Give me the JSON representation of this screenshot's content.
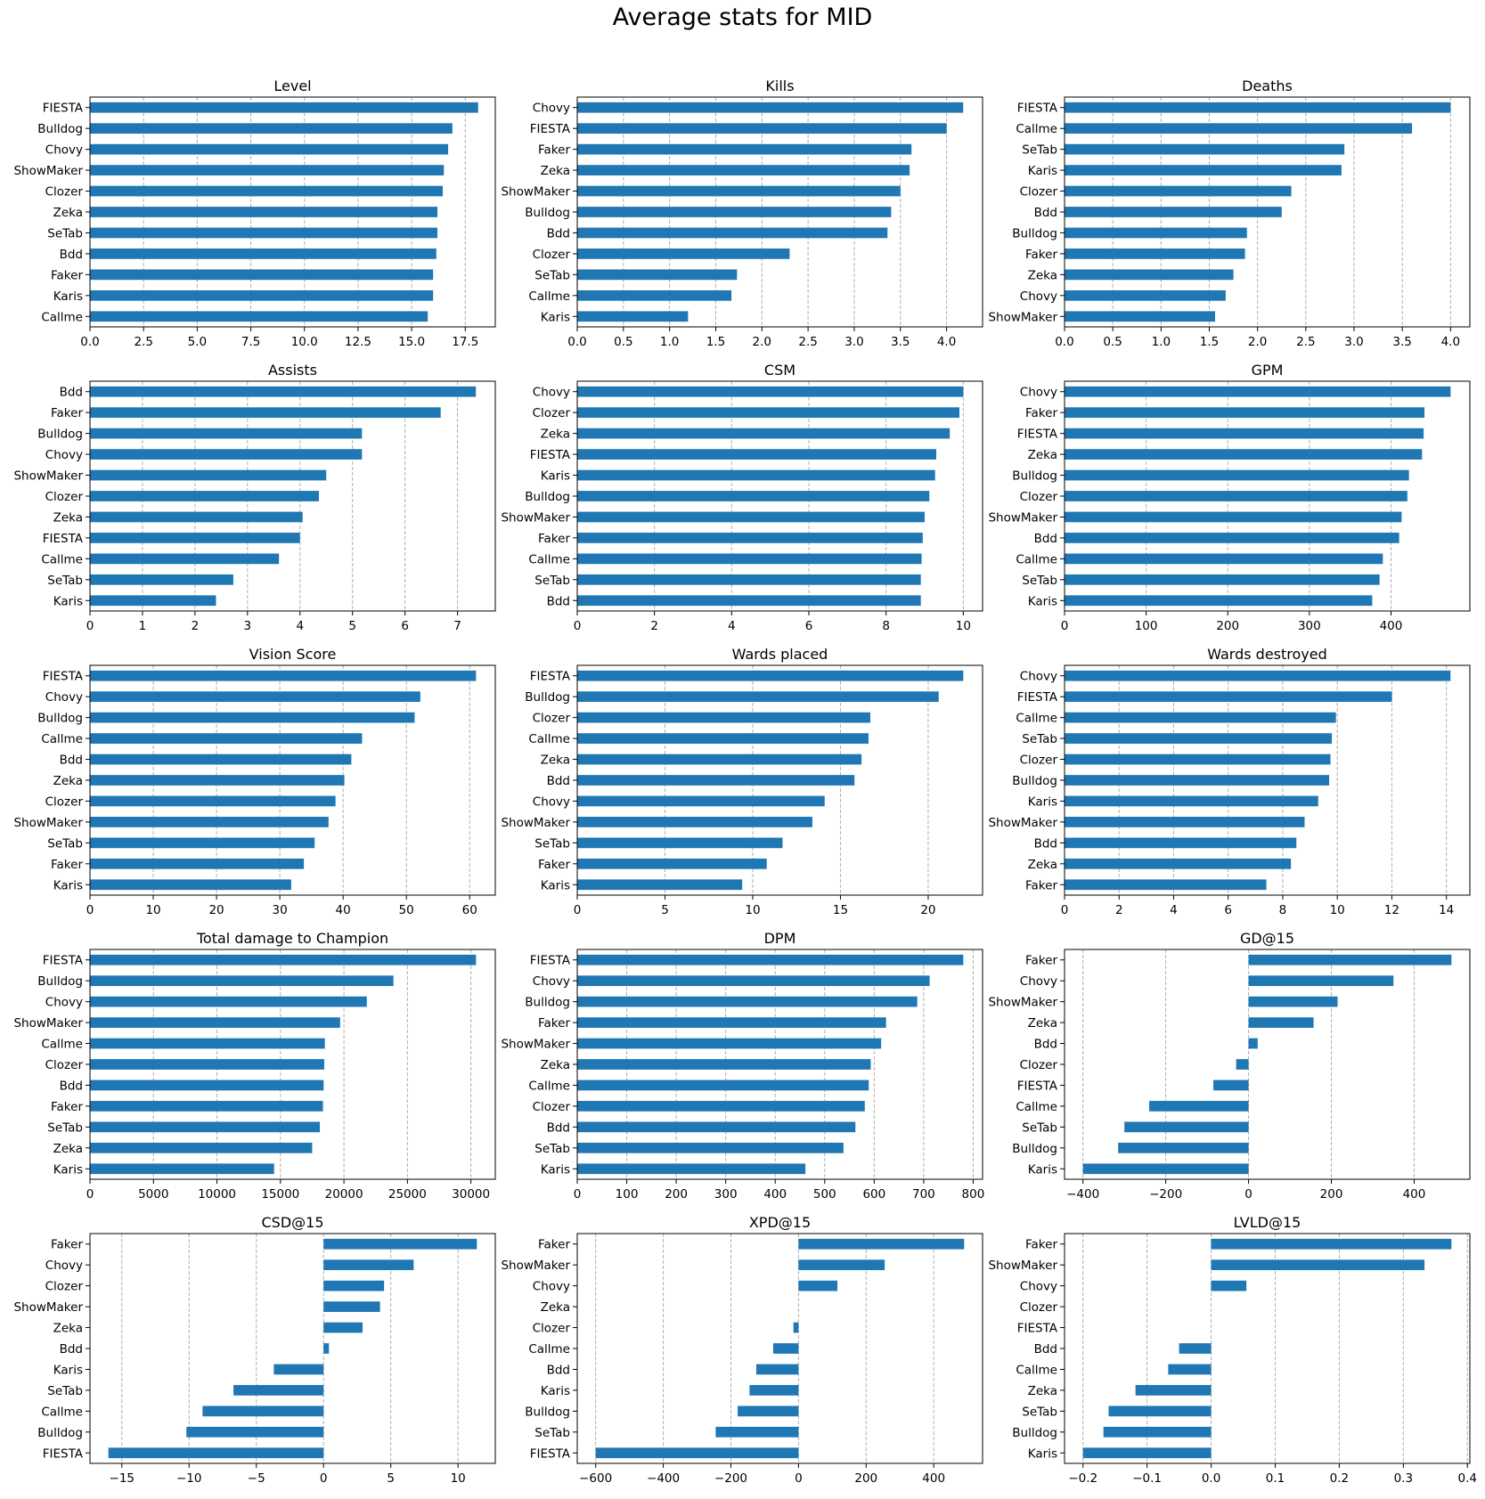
{
  "figure": {
    "title": "Average stats for MID"
  },
  "colors": {
    "bar": "#1f77b4",
    "grid": "#b0b0b0",
    "axis": "#000000"
  },
  "chart_data": [
    {
      "type": "bar",
      "orientation": "horizontal",
      "title": "Level",
      "grid": "x-dashed",
      "categories": [
        "FIESTA",
        "Bulldog",
        "Chovy",
        "ShowMaker",
        "Clozer",
        "Zeka",
        "SeTab",
        "Bdd",
        "Faker",
        "Karis",
        "Callme"
      ],
      "values": [
        18.1,
        16.9,
        16.7,
        16.5,
        16.45,
        16.2,
        16.2,
        16.15,
        16.0,
        16.0,
        15.75
      ],
      "xlim": [
        0,
        18.9
      ],
      "ticks": [
        0,
        2.5,
        5,
        7.5,
        10,
        12.5,
        15,
        17.5
      ],
      "tick_labels": [
        "0.0",
        "2.5",
        "5.0",
        "7.5",
        "10.0",
        "12.5",
        "15.0",
        "17.5"
      ]
    },
    {
      "type": "bar",
      "orientation": "horizontal",
      "title": "Kills",
      "grid": "x-dashed",
      "categories": [
        "Chovy",
        "FIESTA",
        "Faker",
        "Zeka",
        "ShowMaker",
        "Bulldog",
        "Bdd",
        "Clozer",
        "SeTab",
        "Callme",
        "Karis"
      ],
      "values": [
        4.18,
        4.0,
        3.62,
        3.6,
        3.5,
        3.4,
        3.36,
        2.3,
        1.73,
        1.67,
        1.2
      ],
      "xlim": [
        0,
        4.39
      ],
      "ticks": [
        0,
        0.5,
        1,
        1.5,
        2,
        2.5,
        3,
        3.5,
        4
      ],
      "tick_labels": [
        "0.0",
        "0.5",
        "1.0",
        "1.5",
        "2.0",
        "2.5",
        "3.0",
        "3.5",
        "4.0"
      ]
    },
    {
      "type": "bar",
      "orientation": "horizontal",
      "title": "Deaths",
      "grid": "x-dashed",
      "categories": [
        "FIESTA",
        "Callme",
        "SeTab",
        "Karis",
        "Clozer",
        "Bdd",
        "Bulldog",
        "Faker",
        "Zeka",
        "Chovy",
        "ShowMaker"
      ],
      "values": [
        4.0,
        3.6,
        2.9,
        2.87,
        2.35,
        2.25,
        1.89,
        1.87,
        1.75,
        1.67,
        1.56
      ],
      "xlim": [
        0,
        4.2
      ],
      "ticks": [
        0,
        0.5,
        1,
        1.5,
        2,
        2.5,
        3,
        3.5,
        4
      ],
      "tick_labels": [
        "0.0",
        "0.5",
        "1.0",
        "1.5",
        "2.0",
        "2.5",
        "3.0",
        "3.5",
        "4.0"
      ]
    },
    {
      "type": "bar",
      "orientation": "horizontal",
      "title": "Assists",
      "grid": "x-dashed",
      "categories": [
        "Bdd",
        "Faker",
        "Bulldog",
        "Chovy",
        "ShowMaker",
        "Clozer",
        "Zeka",
        "FIESTA",
        "Callme",
        "SeTab",
        "Karis"
      ],
      "values": [
        7.35,
        6.68,
        5.18,
        5.18,
        4.5,
        4.36,
        4.05,
        4.0,
        3.6,
        2.73,
        2.4
      ],
      "xlim": [
        0,
        7.72
      ],
      "ticks": [
        0,
        1,
        2,
        3,
        4,
        5,
        6,
        7
      ],
      "tick_labels": [
        "0",
        "1",
        "2",
        "3",
        "4",
        "5",
        "6",
        "7"
      ]
    },
    {
      "type": "bar",
      "orientation": "horizontal",
      "title": "CSM",
      "grid": "x-dashed",
      "categories": [
        "Chovy",
        "Clozer",
        "Zeka",
        "FIESTA",
        "Karis",
        "Bulldog",
        "ShowMaker",
        "Faker",
        "Callme",
        "SeTab",
        "Bdd"
      ],
      "values": [
        10.0,
        9.9,
        9.65,
        9.3,
        9.27,
        9.12,
        9.0,
        8.95,
        8.92,
        8.9,
        8.9
      ],
      "xlim": [
        0,
        10.5
      ],
      "ticks": [
        0,
        2,
        4,
        6,
        8,
        10
      ],
      "tick_labels": [
        "0",
        "2",
        "4",
        "6",
        "8",
        "10"
      ]
    },
    {
      "type": "bar",
      "orientation": "horizontal",
      "title": "GPM",
      "grid": "x-dashed",
      "categories": [
        "Chovy",
        "Faker",
        "FIESTA",
        "Zeka",
        "Bulldog",
        "Clozer",
        "ShowMaker",
        "Bdd",
        "Callme",
        "SeTab",
        "Karis"
      ],
      "values": [
        473,
        441,
        440,
        438,
        422,
        420,
        413,
        410,
        390,
        386,
        377
      ],
      "xlim": [
        0,
        496.6
      ],
      "ticks": [
        0,
        100,
        200,
        300,
        400
      ],
      "tick_labels": [
        "0",
        "100",
        "200",
        "300",
        "400"
      ]
    },
    {
      "type": "bar",
      "orientation": "horizontal",
      "title": "Vision Score",
      "grid": "x-dashed",
      "categories": [
        "FIESTA",
        "Chovy",
        "Bulldog",
        "Callme",
        "Bdd",
        "Zeka",
        "Clozer",
        "ShowMaker",
        "SeTab",
        "Faker",
        "Karis"
      ],
      "values": [
        61.0,
        52.2,
        51.3,
        43.0,
        41.3,
        40.2,
        38.8,
        37.7,
        35.5,
        33.8,
        31.8
      ],
      "xlim": [
        0,
        64.05
      ],
      "ticks": [
        0,
        10,
        20,
        30,
        40,
        50,
        60
      ],
      "tick_labels": [
        "0",
        "10",
        "20",
        "30",
        "40",
        "50",
        "60"
      ]
    },
    {
      "type": "bar",
      "orientation": "horizontal",
      "title": "Wards placed",
      "grid": "x-dashed",
      "categories": [
        "FIESTA",
        "Bulldog",
        "Clozer",
        "Callme",
        "Zeka",
        "Bdd",
        "Chovy",
        "ShowMaker",
        "SeTab",
        "Faker",
        "Karis"
      ],
      "values": [
        22.0,
        20.6,
        16.7,
        16.6,
        16.2,
        15.8,
        14.1,
        13.4,
        11.7,
        10.8,
        9.4
      ],
      "xlim": [
        0,
        23.1
      ],
      "ticks": [
        0,
        5,
        10,
        15,
        20
      ],
      "tick_labels": [
        "0",
        "5",
        "10",
        "15",
        "20"
      ]
    },
    {
      "type": "bar",
      "orientation": "horizontal",
      "title": "Wards destroyed",
      "grid": "x-dashed",
      "categories": [
        "Chovy",
        "FIESTA",
        "Callme",
        "SeTab",
        "Clozer",
        "Bulldog",
        "Karis",
        "ShowMaker",
        "Bdd",
        "Zeka",
        "Faker"
      ],
      "values": [
        14.15,
        12.0,
        9.95,
        9.8,
        9.75,
        9.7,
        9.3,
        8.8,
        8.5,
        8.3,
        7.4
      ],
      "xlim": [
        0,
        14.86
      ],
      "ticks": [
        0,
        2,
        4,
        6,
        8,
        10,
        12,
        14
      ],
      "tick_labels": [
        "0",
        "2",
        "4",
        "6",
        "8",
        "10",
        "12",
        "14"
      ]
    },
    {
      "type": "bar",
      "orientation": "horizontal",
      "title": "Total damage to Champion",
      "grid": "x-dashed",
      "categories": [
        "FIESTA",
        "Bulldog",
        "Chovy",
        "ShowMaker",
        "Callme",
        "Clozer",
        "Bdd",
        "Faker",
        "SeTab",
        "Zeka",
        "Karis"
      ],
      "values": [
        30400,
        23900,
        21800,
        19700,
        18500,
        18450,
        18400,
        18350,
        18100,
        17500,
        14500
      ],
      "xlim": [
        0,
        31920
      ],
      "ticks": [
        0,
        5000,
        10000,
        15000,
        20000,
        25000,
        30000
      ],
      "tick_labels": [
        "0",
        "5000",
        "10000",
        "15000",
        "20000",
        "25000",
        "30000"
      ]
    },
    {
      "type": "bar",
      "orientation": "horizontal",
      "title": "DPM",
      "grid": "x-dashed",
      "categories": [
        "FIESTA",
        "Chovy",
        "Bulldog",
        "Faker",
        "ShowMaker",
        "Zeka",
        "Callme",
        "Clozer",
        "Bdd",
        "SeTab",
        "Karis"
      ],
      "values": [
        780,
        712,
        687,
        624,
        614,
        593,
        589,
        581,
        562,
        538,
        461
      ],
      "xlim": [
        0,
        819
      ],
      "ticks": [
        0,
        100,
        200,
        300,
        400,
        500,
        600,
        700,
        800
      ],
      "tick_labels": [
        "0",
        "100",
        "200",
        "300",
        "400",
        "500",
        "600",
        "700",
        "800"
      ]
    },
    {
      "type": "bar",
      "orientation": "horizontal",
      "title": "GD@15",
      "grid": "x-dashed",
      "categories": [
        "Faker",
        "Chovy",
        "ShowMaker",
        "Zeka",
        "Bdd",
        "Clozer",
        "FIESTA",
        "Callme",
        "SeTab",
        "Bulldog",
        "Karis"
      ],
      "values": [
        490,
        350,
        215,
        157,
        22,
        -30,
        -85,
        -240,
        -300,
        -315,
        -400
      ],
      "xlim": [
        -444.5,
        534.5
      ],
      "ticks": [
        -400,
        -200,
        0,
        200,
        400
      ],
      "tick_labels": [
        "−400",
        "−200",
        "0",
        "200",
        "400"
      ]
    },
    {
      "type": "bar",
      "orientation": "horizontal",
      "title": "CSD@15",
      "grid": "x-dashed",
      "categories": [
        "Faker",
        "Chovy",
        "Clozer",
        "ShowMaker",
        "Zeka",
        "Bdd",
        "Karis",
        "SeTab",
        "Callme",
        "Bulldog",
        "FIESTA"
      ],
      "values": [
        11.4,
        6.7,
        4.5,
        4.2,
        2.9,
        0.4,
        -3.7,
        -6.7,
        -9.0,
        -10.2,
        -16.0
      ],
      "xlim": [
        -17.37,
        12.77
      ],
      "ticks": [
        -15,
        -10,
        -5,
        0,
        5,
        10
      ],
      "tick_labels": [
        "−15",
        "−10",
        "−5",
        "0",
        "5",
        "10"
      ]
    },
    {
      "type": "bar",
      "orientation": "horizontal",
      "title": "XPD@15",
      "grid": "x-dashed",
      "categories": [
        "Faker",
        "ShowMaker",
        "Chovy",
        "Zeka",
        "Clozer",
        "Callme",
        "Bdd",
        "Karis",
        "Bulldog",
        "SeTab",
        "FIESTA"
      ],
      "values": [
        490,
        255,
        115,
        0,
        -15,
        -75,
        -125,
        -145,
        -180,
        -245,
        -600
      ],
      "xlim": [
        -654.5,
        544.5
      ],
      "ticks": [
        -600,
        -400,
        -200,
        0,
        200,
        400
      ],
      "tick_labels": [
        "−600",
        "−400",
        "−200",
        "0",
        "200",
        "400"
      ]
    },
    {
      "type": "bar",
      "orientation": "horizontal",
      "title": "LVLD@15",
      "grid": "x-dashed",
      "categories": [
        "Faker",
        "ShowMaker",
        "Chovy",
        "Clozer",
        "FIESTA",
        "Bdd",
        "Callme",
        "Zeka",
        "SeTab",
        "Bulldog",
        "Karis"
      ],
      "values": [
        0.375,
        0.333,
        0.055,
        0,
        0,
        -0.05,
        -0.067,
        -0.118,
        -0.16,
        -0.168,
        -0.2
      ],
      "xlim": [
        -0.2288,
        0.4038
      ],
      "ticks": [
        -0.2,
        -0.1,
        0,
        0.1,
        0.2,
        0.3,
        0.4
      ],
      "tick_labels": [
        "−0.2",
        "−0.1",
        "0.0",
        "0.1",
        "0.2",
        "0.3",
        "0.4"
      ]
    }
  ]
}
